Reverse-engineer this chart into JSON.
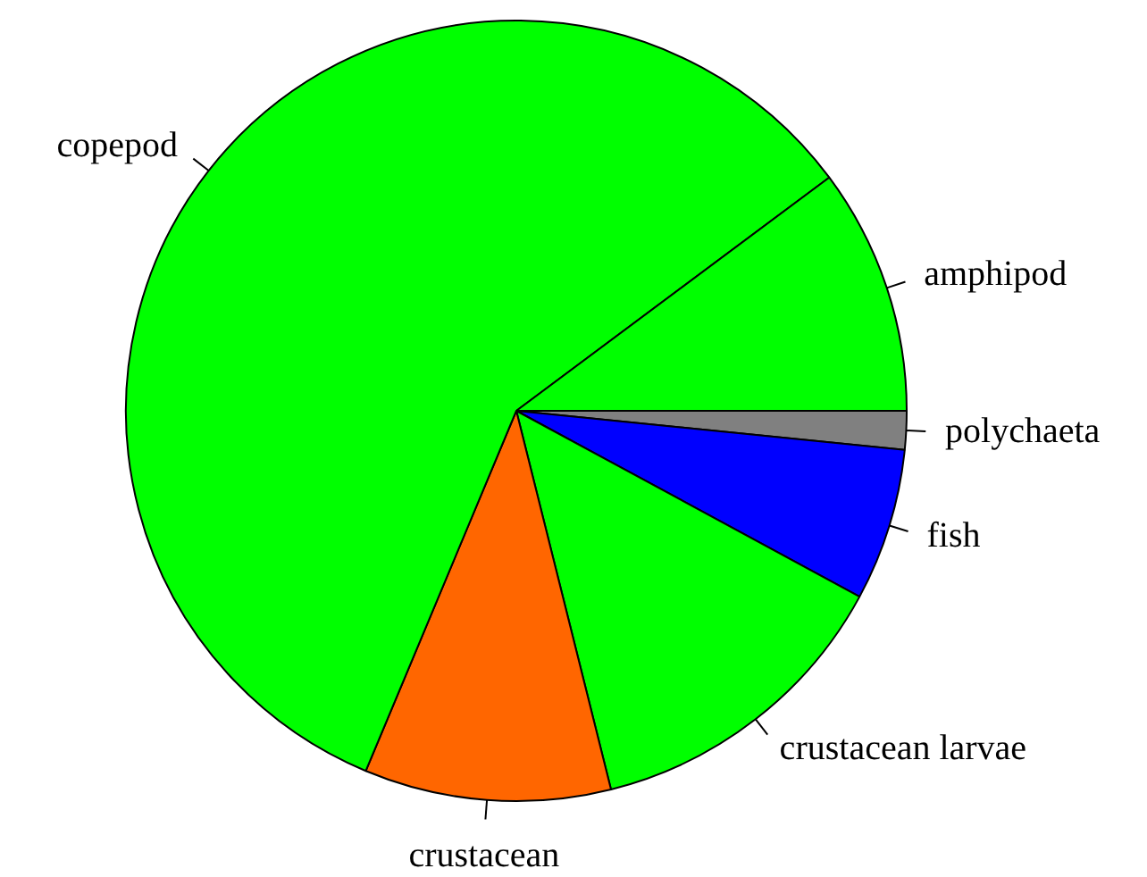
{
  "chart_data": {
    "type": "pie",
    "categories": [
      "polychaeta",
      "fish",
      "crustacean larvae",
      "crustacean",
      "copepod",
      "amphipod"
    ],
    "values": [
      1.6,
      6.3,
      13.2,
      10.2,
      58.5,
      10.2
    ],
    "colors": [
      "#808080",
      "#0000ff",
      "#00ff00",
      "#ff6600",
      "#00ff00",
      "#00ff00"
    ]
  }
}
